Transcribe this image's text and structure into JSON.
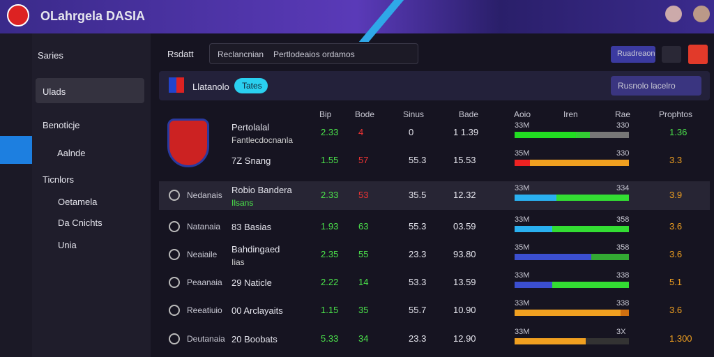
{
  "header": {
    "brand": "OLahrgela DASIA"
  },
  "sidebar": {
    "title": "Saries",
    "items": [
      "Ulads",
      "Benoticje",
      "Aalnde"
    ],
    "section": "Ticnlors",
    "subitems": [
      "Oetamela",
      "Da Cnichts",
      "Unia"
    ]
  },
  "toolbar": {
    "title": "Rsdatt",
    "search": "Reclancnian",
    "search_hint": "Pertlodeaios ordamos",
    "button": "Ruadreaon"
  },
  "filter": {
    "label": "Llatanolo",
    "pill": "Tates",
    "dropdown": "Rusnolo lacelro"
  },
  "table": {
    "columns": [
      "Bip",
      "Bode",
      "Sinus",
      "Bade",
      "Aoio",
      "Iren",
      "Rae",
      "Prophtos"
    ],
    "rows": [
      {
        "team": "",
        "name": "Pertolalal",
        "sub": "Fantlecdocnanla",
        "c1": "2.33",
        "c2": "4",
        "c3": "0",
        "c4": "1  1.39",
        "bar_left": "33M",
        "bar_right": "330",
        "last": "1.36"
      },
      {
        "team": "",
        "name": "7Z Snang",
        "sub": "",
        "c1": "1.55",
        "c2": "57",
        "c3": "55.3",
        "c4": "15.53",
        "bar_left": "35M",
        "bar_right": "330",
        "last": "3.3"
      },
      {
        "team": "Nedanais",
        "name": "Robio Bandera",
        "sub": "Ilsans",
        "c1": "2.33",
        "c2": "53",
        "c3": "35.5",
        "c4": "12.32",
        "bar_left": "33M",
        "bar_right": "334",
        "last": "3.9"
      },
      {
        "team": "Natanaia",
        "name": "83 Basias",
        "sub": "",
        "c1": "1.93",
        "c2": "63",
        "c3": "55.3",
        "c4": "03.59",
        "bar_left": "33M",
        "bar_right": "358",
        "last": "3.6"
      },
      {
        "team": "Neaiaile",
        "name": "Bahdingaed",
        "sub": "Iias",
        "c1": "2.35",
        "c2": "55",
        "c3": "23.3",
        "c4": "93.80",
        "bar_left": "35M",
        "bar_right": "358",
        "last": "3.6"
      },
      {
        "team": "Peaanaia",
        "name": "29 Naticle",
        "sub": "",
        "c1": "2.22",
        "c2": "14",
        "c3": "53.3",
        "c4": "13.59",
        "bar_left": "33M",
        "bar_right": "338",
        "last": "5.1"
      },
      {
        "team": "Reeatiuio",
        "name": "00 Arclayaits",
        "sub": "",
        "c1": "1.15",
        "c2": "35",
        "c3": "55.7",
        "c4": "10.90",
        "bar_left": "33M",
        "bar_right": "338",
        "last": "3.6"
      },
      {
        "team": "Deutanaia",
        "name": "20 Boobats",
        "sub": "",
        "c1": "5.33",
        "c2": "34",
        "c3": "23.3",
        "c4": "12.90",
        "bar_left": "33M",
        "bar_right": "3X",
        "last": "1.300"
      }
    ]
  }
}
